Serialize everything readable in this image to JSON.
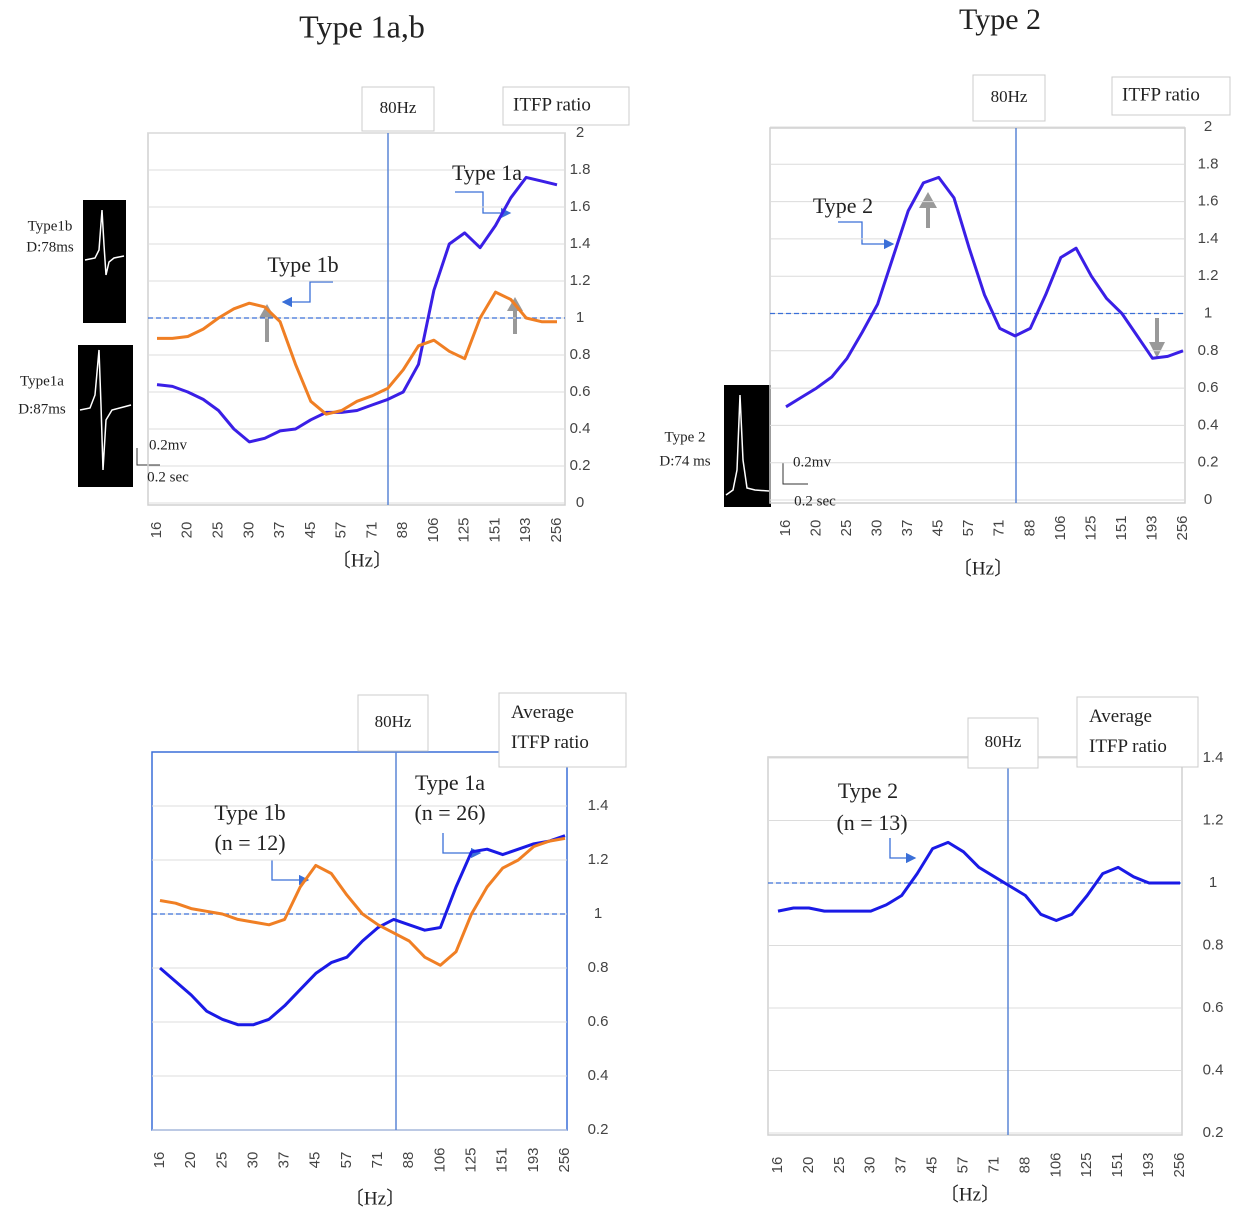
{
  "chart_data": [
    {
      "type": "line",
      "title": "Type 1a,b",
      "x_label": "〔Hz〕",
      "y_label": "ITFP ratio",
      "vline_label": "80Hz",
      "categories": [
        "16",
        null,
        "20",
        null,
        "25",
        null,
        "30",
        null,
        "37",
        null,
        "45",
        null,
        "57",
        null,
        "71",
        null,
        "88",
        null,
        "106",
        null,
        "125",
        null,
        "151",
        null,
        "193",
        null,
        "256"
      ],
      "series": [
        {
          "name": "Type 1a",
          "color": "#3a1fe6",
          "values": [
            0.64,
            0.63,
            0.6,
            0.56,
            0.5,
            0.4,
            0.33,
            0.35,
            0.39,
            0.4,
            0.45,
            0.49,
            0.49,
            0.5,
            0.53,
            0.56,
            0.6,
            0.75,
            1.15,
            1.4,
            1.46,
            1.38,
            1.5,
            1.65,
            1.76,
            1.74,
            1.72
          ]
        },
        {
          "name": "Type 1b",
          "color": "#f07f24",
          "values": [
            0.89,
            0.89,
            0.9,
            0.94,
            1.0,
            1.05,
            1.08,
            1.06,
            0.98,
            0.75,
            0.55,
            0.48,
            0.5,
            0.55,
            0.58,
            0.62,
            0.72,
            0.85,
            0.88,
            0.82,
            0.78,
            1.0,
            1.14,
            1.1,
            1.0,
            0.98,
            0.98
          ]
        }
      ],
      "ylim": [
        0,
        2
      ],
      "yticks": [
        0,
        0.2,
        0.4,
        0.6,
        0.8,
        1,
        1.2,
        1.4,
        1.6,
        1.8,
        2
      ],
      "hline": 1,
      "grid": true,
      "annotations": [
        "Type 1a",
        "Type 1b",
        "Type1b",
        "D:78ms",
        "Type1a",
        "D:87ms",
        "0.2mv",
        "0.2 sec"
      ]
    },
    {
      "type": "line",
      "title": "Type 2",
      "x_label": "〔Hz〕",
      "y_label": "ITFP ratio",
      "vline_label": "80Hz",
      "categories": [
        "16",
        null,
        "20",
        null,
        "25",
        null,
        "30",
        null,
        "37",
        null,
        "45",
        null,
        "57",
        null,
        "71",
        null,
        "88",
        null,
        "106",
        null,
        "125",
        null,
        "151",
        null,
        "193",
        null,
        "256"
      ],
      "series": [
        {
          "name": "Type 2",
          "color": "#3a1fe6",
          "values": [
            0.5,
            0.55,
            0.6,
            0.66,
            0.76,
            0.9,
            1.05,
            1.3,
            1.55,
            1.7,
            1.73,
            1.62,
            1.35,
            1.1,
            0.92,
            0.88,
            0.92,
            1.1,
            1.3,
            1.35,
            1.2,
            1.08,
            1.0,
            0.88,
            0.76,
            0.77,
            0.8
          ]
        }
      ],
      "ylim": [
        0,
        2
      ],
      "yticks": [
        0,
        0.2,
        0.4,
        0.6,
        0.8,
        1,
        1.2,
        1.4,
        1.6,
        1.8,
        2
      ],
      "hline": 1,
      "grid": true,
      "annotations": [
        "Type 2",
        "Type 2",
        "D:74 ms",
        "0.2mv",
        "0.2 sec"
      ]
    },
    {
      "type": "line",
      "x_label": "〔Hz〕",
      "y_label": "Average ITFP ratio",
      "vline_label": "80Hz",
      "categories": [
        "16",
        null,
        "20",
        null,
        "25",
        null,
        "30",
        null,
        "37",
        null,
        "45",
        null,
        "57",
        null,
        "71",
        null,
        "88",
        null,
        "106",
        null,
        "125",
        null,
        "151",
        null,
        "193",
        null,
        "256"
      ],
      "series": [
        {
          "name": "Type 1a",
          "color": "#1a1ae6",
          "values": [
            0.8,
            0.75,
            0.7,
            0.64,
            0.61,
            0.59,
            0.59,
            0.61,
            0.66,
            0.72,
            0.78,
            0.82,
            0.84,
            0.9,
            0.95,
            0.98,
            0.96,
            0.94,
            0.95,
            1.1,
            1.23,
            1.24,
            1.22,
            1.24,
            1.26,
            1.27,
            1.29
          ]
        },
        {
          "name": "Type 1b",
          "color": "#f07f24",
          "values": [
            1.05,
            1.04,
            1.02,
            1.01,
            1.0,
            0.98,
            0.97,
            0.96,
            0.98,
            1.1,
            1.18,
            1.15,
            1.07,
            1.0,
            0.96,
            0.93,
            0.9,
            0.84,
            0.81,
            0.86,
            1.0,
            1.1,
            1.17,
            1.2,
            1.25,
            1.27,
            1.28
          ]
        }
      ],
      "ylim": [
        0.2,
        1.6
      ],
      "yticks": [
        0.2,
        0.4,
        0.6,
        0.8,
        1,
        1.2,
        1.4
      ],
      "hline": 1,
      "grid": true,
      "annotations": [
        "Type 1b",
        "(n = 12)",
        "Type 1a",
        "(n = 26)"
      ]
    },
    {
      "type": "line",
      "x_label": "〔Hz〕",
      "y_label": "Average ITFP ratio",
      "vline_label": "80Hz",
      "categories": [
        "16",
        null,
        "20",
        null,
        "25",
        null,
        "30",
        null,
        "37",
        null,
        "45",
        null,
        "57",
        null,
        "71",
        null,
        "88",
        null,
        "106",
        null,
        "125",
        null,
        "151",
        null,
        "193",
        null,
        "256"
      ],
      "series": [
        {
          "name": "Type 2",
          "color": "#1a1ae6",
          "values": [
            0.91,
            0.92,
            0.92,
            0.91,
            0.91,
            0.91,
            0.91,
            0.93,
            0.96,
            1.03,
            1.11,
            1.13,
            1.1,
            1.05,
            1.02,
            0.99,
            0.96,
            0.9,
            0.88,
            0.9,
            0.96,
            1.03,
            1.05,
            1.02,
            1.0,
            1.0,
            1.0
          ]
        }
      ],
      "ylim": [
        0.2,
        1.4
      ],
      "yticks": [
        0.2,
        0.4,
        0.6,
        0.8,
        1,
        1.2,
        1.4
      ],
      "hline": 1,
      "grid": true,
      "annotations": [
        "Type 2",
        "(n = 13)"
      ]
    }
  ]
}
